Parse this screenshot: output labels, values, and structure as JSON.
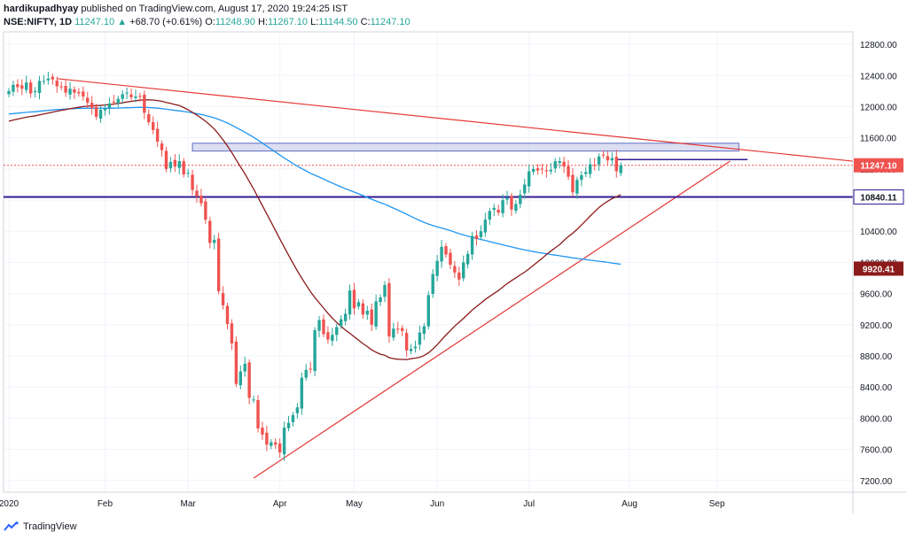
{
  "header": {
    "author": "hardikupadhyay",
    "published_text": "published on TradingView.com, August 17, 2020 19:24:25 IST",
    "symbol": "NSE:NIFTY, 1D",
    "last": "11247.10",
    "change": "+68.70 (+0.61%)",
    "o_label": "O:",
    "o_value": "11248.90",
    "h_label": "H:",
    "h_value": "11267.10",
    "l_label": "L:",
    "l_value": "11144.50",
    "c_label": "C:",
    "c_value": "11247.10"
  },
  "footer": {
    "brand": "TradingView"
  },
  "colors": {
    "up": "#26a69a",
    "down": "#ef5350",
    "ma_blue": "#2196f3",
    "ma_brown": "#8b1a1a",
    "trendline": "#e53935",
    "support": "#311b92",
    "zone_fill": "#c5cae9",
    "zone_stroke": "#5c6bc0"
  },
  "chart_data": {
    "type": "candlestick",
    "y_axis": {
      "min": 7050,
      "max": 12960,
      "ticks": [
        7200,
        7600,
        8000,
        8400,
        8800,
        9200,
        9600,
        10000,
        10400,
        10800,
        11200,
        11600,
        12000,
        12400,
        12800
      ]
    },
    "x_axis_labels": [
      {
        "label": "2020",
        "day": 0
      },
      {
        "label": "Feb",
        "day": 22
      },
      {
        "label": "Mar",
        "day": 41
      },
      {
        "label": "Apr",
        "day": 62
      },
      {
        "label": "May",
        "day": 79
      },
      {
        "label": "Jun",
        "day": 98
      },
      {
        "label": "Jul",
        "day": 119
      },
      {
        "label": "Aug",
        "day": 142
      },
      {
        "label": "Sep",
        "day": 162
      }
    ],
    "price_labels": [
      {
        "value": "11247.10",
        "price": 11247.1,
        "style": "current"
      },
      {
        "value": "10840.11",
        "price": 10840.11,
        "style": "support"
      },
      {
        "value": "9920.41",
        "price": 9920.41,
        "style": "ma"
      }
    ],
    "closes": [
      12200,
      12280,
      12250,
      12230,
      12310,
      12170,
      12200,
      12330,
      12330,
      12360,
      12350,
      12260,
      12250,
      12180,
      12230,
      12180,
      12170,
      12130,
      12050,
      11980,
      11870,
      11960,
      11970,
      12040,
      12060,
      12100,
      12160,
      12180,
      12120,
      12130,
      12130,
      11920,
      11800,
      11700,
      11550,
      11440,
      11200,
      11290,
      11230,
      11300,
      11130,
      11150,
      10930,
      10850,
      10760,
      10550,
      10250,
      10290,
      9630,
      9450,
      9210,
      8960,
      8440,
      8600,
      8700,
      8260,
      8240,
      7870,
      7790,
      7660,
      7690,
      7660,
      7560,
      7880,
      7940,
      8040,
      8140,
      8520,
      8620,
      8630,
      9130,
      9260,
      9080,
      9010,
      9070,
      9170,
      9270,
      9340,
      9640,
      9410,
      9490,
      9330,
      9380,
      9200,
      9500,
      9550,
      9710,
      9050,
      9150,
      9140,
      9120,
      8870,
      8890,
      8920,
      9100,
      9180,
      9580,
      9850,
      10020,
      10200,
      10100,
      9970,
      9870,
      9780,
      10000,
      10110,
      10340,
      10300,
      10400,
      10550,
      10660,
      10700,
      10640,
      10800,
      10830,
      10680,
      10750,
      10870,
      11000,
      11170,
      11200,
      11180,
      11200,
      11170,
      11190,
      11300,
      11300,
      11230,
      11100,
      10900,
      11060,
      11120,
      11160,
      11260,
      11250,
      11360,
      11380,
      11310,
      11340,
      11170,
      11247
    ],
    "series": [
      {
        "name": "",
        "kind": "ma",
        "values_desc": "long moving average"
      },
      {
        "name": "",
        "kind": "ma",
        "values_desc": "short moving average"
      }
    ],
    "annotations": [
      {
        "type": "descending-trendline"
      },
      {
        "type": "ascending-trendline"
      },
      {
        "type": "horizontal-support",
        "price": 10840.11
      },
      {
        "type": "resistance-zone",
        "top": 11530,
        "bottom": 11430
      },
      {
        "type": "short-resistance-line",
        "price": 11320
      }
    ]
  }
}
